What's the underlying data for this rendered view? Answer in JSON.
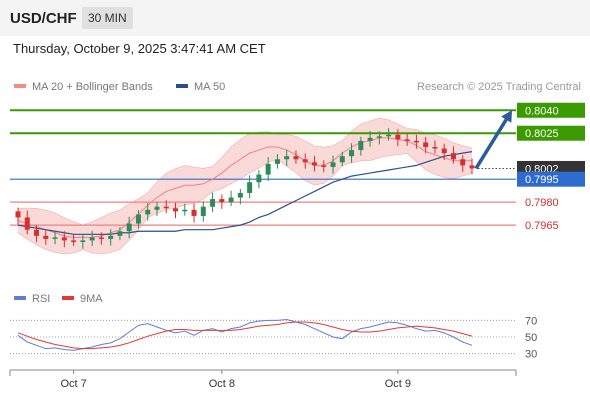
{
  "header": {
    "symbol": "USD/CHF",
    "timeframe": "30 MIN",
    "datetime": "Thursday, October 9, 2025 3:47:41 AM CET"
  },
  "legend": {
    "items": [
      {
        "label": "MA 20 + Bollinger Bands",
        "color": "#f28b82"
      },
      {
        "label": "MA 50",
        "color": "#2c4f8c"
      }
    ],
    "credit": "Research © 2025 Trading Central"
  },
  "rsi_legend": {
    "items": [
      {
        "label": "RSI",
        "color": "#5b7fd6"
      },
      {
        "label": "9MA",
        "color": "#e53935"
      }
    ]
  },
  "colors": {
    "resistance": "#3a9a00",
    "current": "#333333",
    "pivot": "#2e6bcf",
    "support": "#f08080",
    "bull_candle": "#2e8b57",
    "bear_candle": "#d62f2f",
    "band_fill": "#f8c9c9",
    "ma20": "#f08080",
    "ma50": "#2c4f8c",
    "arrow": "#2c5a9e"
  },
  "chart_data": [
    {
      "type": "line",
      "title": "USD/CHF 30 MIN",
      "y_range": [
        0.7937,
        0.8048
      ],
      "x_labels": [
        "Oct 7",
        "Oct 8",
        "Oct 9"
      ],
      "levels": [
        {
          "value": 0.804,
          "label": "0.8040",
          "kind": "resistance"
        },
        {
          "value": 0.8025,
          "label": "0.8025",
          "kind": "resistance"
        },
        {
          "value": 0.8002,
          "label": "0.8002",
          "kind": "current"
        },
        {
          "value": 0.7995,
          "label": "0.7995",
          "kind": "pivot"
        },
        {
          "value": 0.798,
          "label": "0.7980",
          "kind": "support"
        },
        {
          "value": 0.7965,
          "label": "0.7965",
          "kind": "support"
        }
      ],
      "series": [
        {
          "name": "MA 20 + Bollinger Bands",
          "values": [
            0.7968,
            0.7966,
            0.7964,
            0.7962,
            0.796,
            0.7958,
            0.7957,
            0.7957,
            0.7957,
            0.7958,
            0.796,
            0.7962,
            0.7967,
            0.7972,
            0.7978,
            0.7983,
            0.7987,
            0.7989,
            0.7991,
            0.7991,
            0.7992,
            0.7995,
            0.7999,
            0.8004,
            0.8008,
            0.8012,
            0.8014,
            0.8016,
            0.8016,
            0.8014,
            0.8011,
            0.8007,
            0.8004,
            0.8004,
            0.8007,
            0.8012,
            0.8016,
            0.8019,
            0.802,
            0.8022,
            0.8022,
            0.8021,
            0.802,
            0.8017,
            0.8013,
            0.8011,
            0.8009,
            0.8007,
            0.8007,
            0.8007
          ]
        },
        {
          "name": "MA 50",
          "values": [
            0.7965,
            0.7964,
            0.7963,
            0.7962,
            0.7961,
            0.796,
            0.7959,
            0.7959,
            0.7959,
            0.7959,
            0.7959,
            0.796,
            0.796,
            0.7961,
            0.7961,
            0.7961,
            0.7961,
            0.7961,
            0.7962,
            0.7962,
            0.7962,
            0.7962,
            0.7963,
            0.7964,
            0.7965,
            0.7967,
            0.797,
            0.7972,
            0.7975,
            0.7978,
            0.7981,
            0.7984,
            0.7987,
            0.799,
            0.7993,
            0.7995,
            0.7997,
            0.7998,
            0.7999,
            0.8,
            0.8001,
            0.8002,
            0.8003,
            0.8004,
            0.8006,
            0.8008,
            0.801,
            0.8011,
            0.8012,
            0.8013
          ]
        },
        {
          "name": "Price",
          "values": [
            0.797,
            0.7962,
            0.7958,
            0.7956,
            0.7957,
            0.7955,
            0.7954,
            0.7955,
            0.7957,
            0.7956,
            0.7958,
            0.7961,
            0.7966,
            0.7972,
            0.7975,
            0.7977,
            0.7976,
            0.7974,
            0.7975,
            0.7971,
            0.7977,
            0.7982,
            0.798,
            0.7983,
            0.7986,
            0.7993,
            0.7998,
            0.8005,
            0.8008,
            0.801,
            0.8008,
            0.8006,
            0.8004,
            0.8003,
            0.8006,
            0.801,
            0.8014,
            0.802,
            0.8022,
            0.8023,
            0.8024,
            0.8021,
            0.802,
            0.8019,
            0.8016,
            0.8015,
            0.8012,
            0.8008,
            0.8004,
            0.8002
          ]
        }
      ],
      "forecast_target": 0.804
    },
    {
      "type": "line",
      "title": "RSI",
      "y_ticks": [
        70,
        50,
        30
      ],
      "series": [
        {
          "name": "RSI",
          "values": [
            52,
            44,
            40,
            36,
            37,
            35,
            34,
            36,
            38,
            41,
            43,
            48,
            56,
            64,
            66,
            62,
            58,
            55,
            57,
            52,
            58,
            60,
            56,
            60,
            62,
            67,
            69,
            70,
            70,
            71,
            68,
            65,
            60,
            55,
            50,
            48,
            56,
            60,
            62,
            65,
            68,
            67,
            64,
            60,
            57,
            58,
            55,
            50,
            44,
            40
          ]
        },
        {
          "name": "9MA",
          "values": [
            55,
            51,
            47,
            44,
            41,
            39,
            37,
            36,
            36,
            37,
            38,
            40,
            43,
            47,
            51,
            54,
            57,
            59,
            59,
            58,
            58,
            58,
            58,
            58,
            59,
            61,
            63,
            64,
            65,
            67,
            68,
            68,
            67,
            65,
            62,
            59,
            57,
            56,
            56,
            57,
            59,
            61,
            62,
            63,
            62,
            61,
            59,
            57,
            54,
            51
          ]
        }
      ]
    }
  ]
}
